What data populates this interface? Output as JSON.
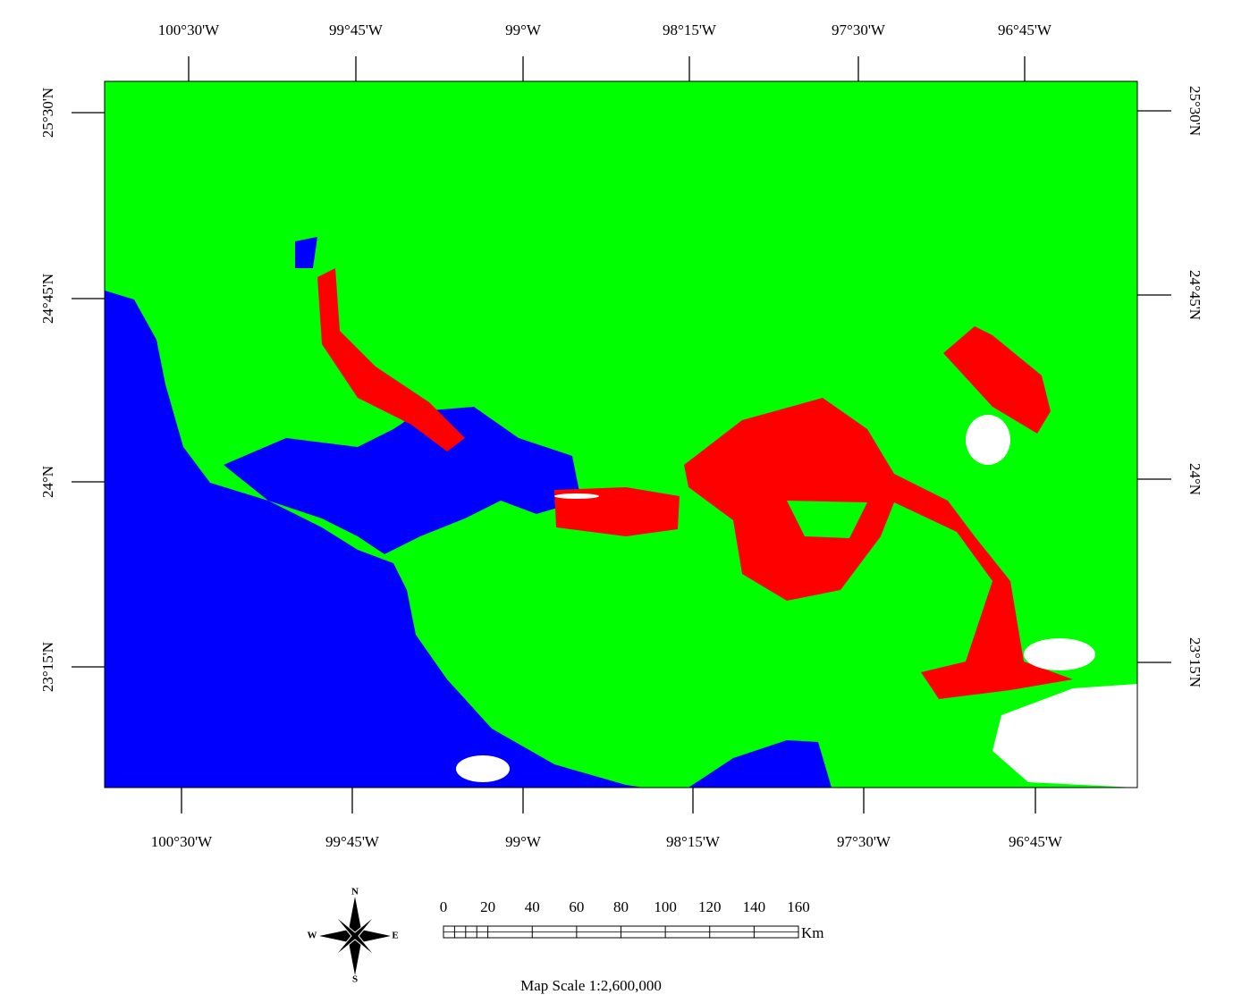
{
  "map": {
    "top_ticks": [
      "100°30'W",
      "99°45'W",
      "99°W",
      "98°15'W",
      "97°30'W",
      "96°45'W"
    ],
    "bottom_ticks": [
      "100°30'W",
      "99°45'W",
      "99°W",
      "98°15'W",
      "97°30'W",
      "96°45'W"
    ],
    "left_ticks": [
      "25°30'N",
      "24°45'N",
      "24°N",
      "23°15'N"
    ],
    "right_ticks": [
      "25°30'N",
      "24°45'N",
      "24°N",
      "23°15'N"
    ],
    "scale_bar": {
      "labels": [
        0,
        20,
        40,
        60,
        80,
        100,
        120,
        140,
        160
      ],
      "unit": "Km"
    },
    "compass": {
      "north": "N",
      "south": "S",
      "east": "E",
      "west": "W"
    },
    "scale_text": "Map Scale 1:2,600,000"
  }
}
